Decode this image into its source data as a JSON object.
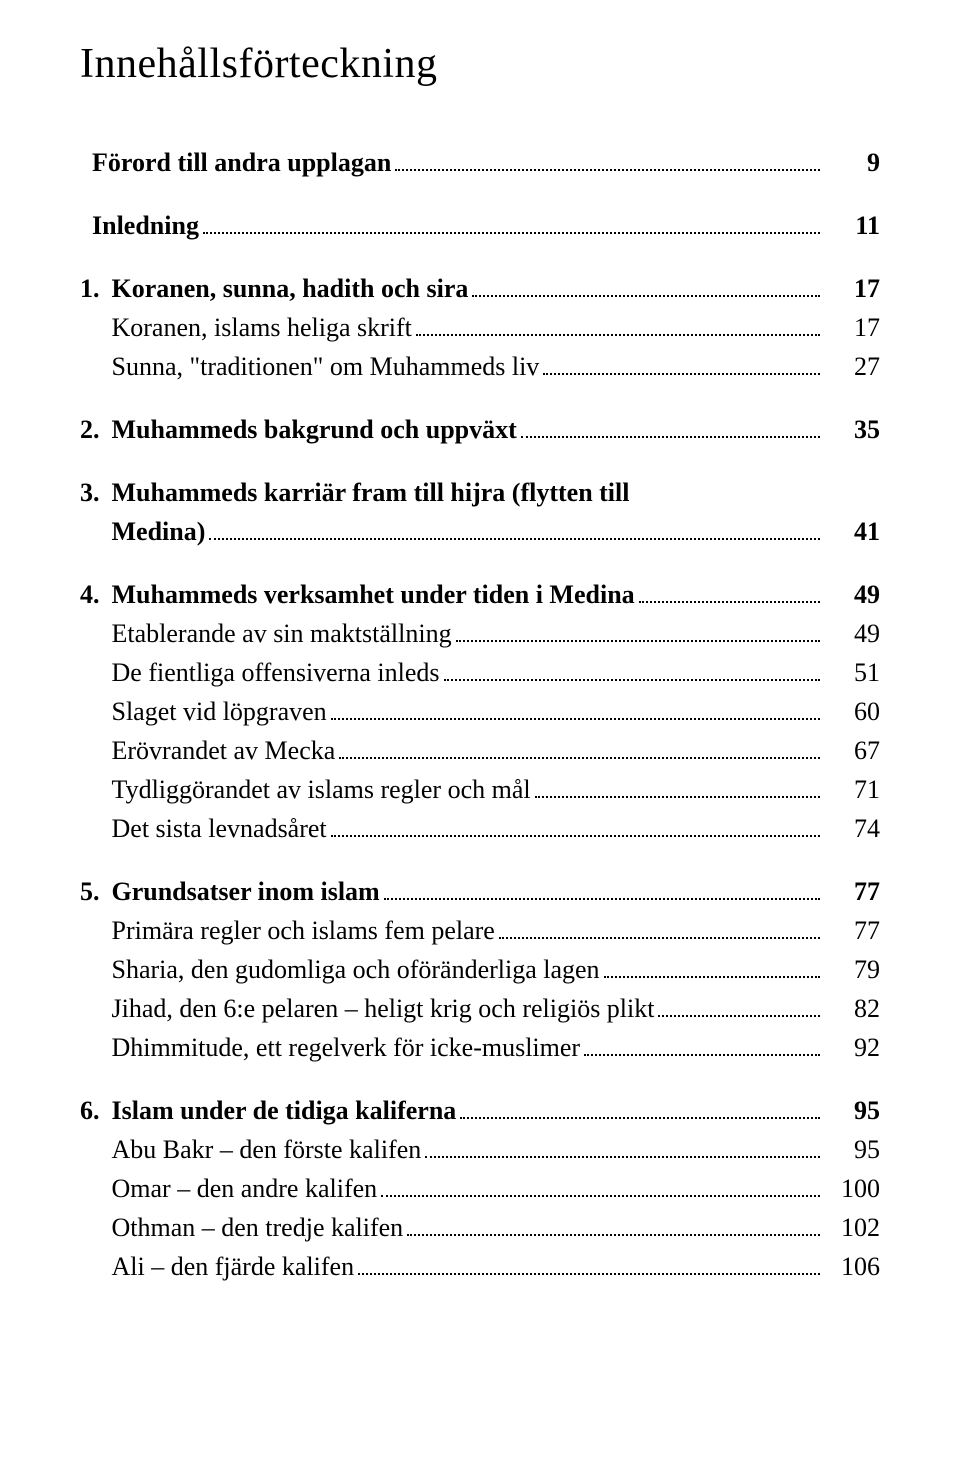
{
  "title": "Innehållsförteckning",
  "entries": [
    {
      "num": "",
      "label": "Förord till andra upplagan",
      "page": "9",
      "bold": true,
      "numHidden": true,
      "gapBefore": false
    },
    {
      "num": "",
      "label": "Inledning",
      "page": "11",
      "bold": true,
      "numHidden": true,
      "gapBefore": true
    },
    {
      "num": "1.",
      "label": "Koranen, sunna, hadith och sira",
      "page": "17",
      "bold": true,
      "numHidden": false,
      "gapBefore": true
    },
    {
      "num": "1.",
      "label": "Koranen, islams heliga skrift",
      "page": "17",
      "bold": false,
      "numHidden": true,
      "gapBefore": false
    },
    {
      "num": "1.",
      "label": "Sunna, \"traditionen\" om Muhammeds liv",
      "page": "27",
      "bold": false,
      "numHidden": true,
      "gapBefore": false
    },
    {
      "num": "2.",
      "label": "Muhammeds bakgrund och uppväxt",
      "page": "35",
      "bold": true,
      "numHidden": false,
      "gapBefore": true
    },
    {
      "num": "3.",
      "label": "Muhammeds karriär fram till hijra (flytten till",
      "page": "",
      "bold": true,
      "numHidden": false,
      "gapBefore": true,
      "noDots": true
    },
    {
      "num": "3.",
      "label": "Medina)",
      "page": "41",
      "bold": true,
      "numHidden": true,
      "gapBefore": false
    },
    {
      "num": "4.",
      "label": "Muhammeds verksamhet under tiden i Medina",
      "page": "49",
      "bold": true,
      "numHidden": false,
      "gapBefore": true
    },
    {
      "num": "4.",
      "label": "Etablerande av sin maktställning",
      "page": "49",
      "bold": false,
      "numHidden": true,
      "gapBefore": false
    },
    {
      "num": "4.",
      "label": "De fientliga offensiverna inleds",
      "page": "51",
      "bold": false,
      "numHidden": true,
      "gapBefore": false
    },
    {
      "num": "4.",
      "label": "Slaget vid löpgraven",
      "page": "60",
      "bold": false,
      "numHidden": true,
      "gapBefore": false
    },
    {
      "num": "4.",
      "label": "Erövrandet av Mecka",
      "page": "67",
      "bold": false,
      "numHidden": true,
      "gapBefore": false
    },
    {
      "num": "4.",
      "label": "Tydliggörandet av islams regler och mål",
      "page": "71",
      "bold": false,
      "numHidden": true,
      "gapBefore": false
    },
    {
      "num": "4.",
      "label": "Det sista levnadsåret",
      "page": "74",
      "bold": false,
      "numHidden": true,
      "gapBefore": false
    },
    {
      "num": "5.",
      "label": "Grundsatser inom islam",
      "page": "77",
      "bold": true,
      "numHidden": false,
      "gapBefore": true
    },
    {
      "num": "5.",
      "label": "Primära regler och islams fem pelare",
      "page": "77",
      "bold": false,
      "numHidden": true,
      "gapBefore": false
    },
    {
      "num": "5.",
      "label": "Sharia, den gudomliga och oföränderliga lagen",
      "page": "79",
      "bold": false,
      "numHidden": true,
      "gapBefore": false
    },
    {
      "num": "5.",
      "label": "Jihad, den 6:e pelaren – heligt krig och religiös plikt",
      "page": "82",
      "bold": false,
      "numHidden": true,
      "gapBefore": false
    },
    {
      "num": "5.",
      "label": "Dhimmitude, ett regelverk för icke-muslimer",
      "page": "92",
      "bold": false,
      "numHidden": true,
      "gapBefore": false
    },
    {
      "num": "6.",
      "label": "Islam under de tidiga kaliferna",
      "page": "95",
      "bold": true,
      "numHidden": false,
      "gapBefore": true
    },
    {
      "num": "6.",
      "label": "Abu Bakr – den förste kalifen",
      "page": "95",
      "bold": false,
      "numHidden": true,
      "gapBefore": false
    },
    {
      "num": "6.",
      "label": "Omar – den andre kalifen",
      "page": "100",
      "bold": false,
      "numHidden": true,
      "gapBefore": false
    },
    {
      "num": "6.",
      "label": "Othman – den tredje kalifen",
      "page": "102",
      "bold": false,
      "numHidden": true,
      "gapBefore": false
    },
    {
      "num": "6.",
      "label": "Ali – den fjärde kalifen",
      "page": "106",
      "bold": false,
      "numHidden": true,
      "gapBefore": false
    }
  ]
}
